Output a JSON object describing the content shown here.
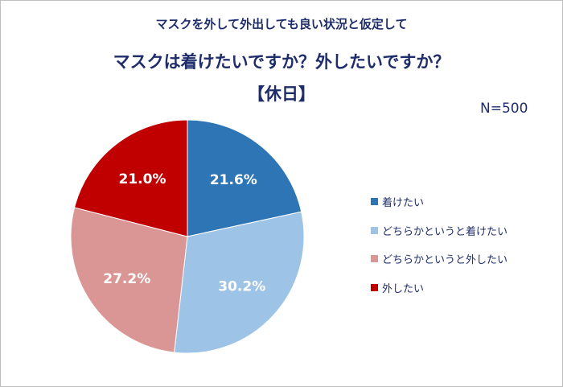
{
  "chart_data": {
    "type": "pie",
    "title_lines": [
      "マスクを外して外出しても良い状況と仮定して",
      "マスクは着けたいですか？外したいですか？",
      "【休日】"
    ],
    "annotation": "N=500",
    "categories": [
      "着けたい",
      "どちらかというと着けたい",
      "どちらかというと外したい",
      "外したい"
    ],
    "values": [
      21.6,
      30.2,
      27.2,
      21.0
    ],
    "data_labels": [
      "21.6%",
      "30.2%",
      "27.2%",
      "21.0%"
    ],
    "colors": [
      "#2e75b6",
      "#9dc3e6",
      "#d99694",
      "#c00000"
    ],
    "start": "12 o'clock",
    "direction": "clockwise",
    "legend": "right"
  }
}
